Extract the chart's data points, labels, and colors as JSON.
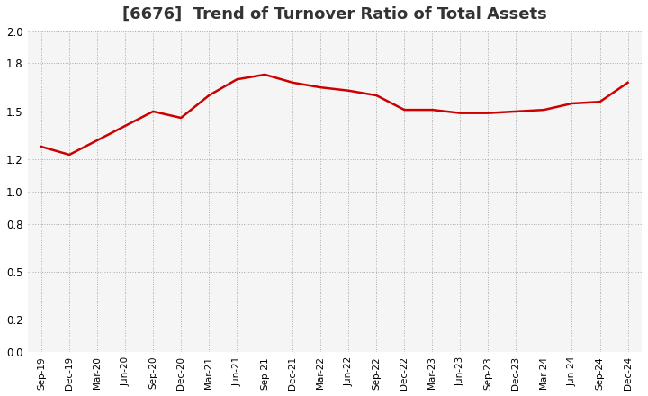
{
  "title": "[6676]  Trend of Turnover Ratio of Total Assets",
  "title_fontsize": 13,
  "title_color": "#333333",
  "line_color": "#cc0000",
  "line_width": 1.8,
  "background_color": "#ffffff",
  "plot_bg_color": "#f5f5f5",
  "grid_color": "#aaaaaa",
  "ylim": [
    0.0,
    2.0
  ],
  "yticks": [
    0.0,
    0.2,
    0.5,
    0.8,
    1.0,
    1.2,
    1.5,
    1.8,
    2.0
  ],
  "labels": [
    "Sep-19",
    "Dec-19",
    "Mar-20",
    "Jun-20",
    "Sep-20",
    "Dec-20",
    "Mar-21",
    "Jun-21",
    "Sep-21",
    "Dec-21",
    "Mar-22",
    "Jun-22",
    "Sep-22",
    "Dec-22",
    "Mar-23",
    "Jun-23",
    "Sep-23",
    "Dec-23",
    "Mar-24",
    "Jun-24",
    "Sep-24",
    "Dec-24"
  ],
  "values": [
    1.28,
    1.23,
    1.32,
    1.41,
    1.5,
    1.46,
    1.6,
    1.7,
    1.73,
    1.68,
    1.65,
    1.63,
    1.6,
    1.51,
    1.51,
    1.49,
    1.49,
    1.5,
    1.51,
    1.55,
    1.56,
    1.68
  ]
}
